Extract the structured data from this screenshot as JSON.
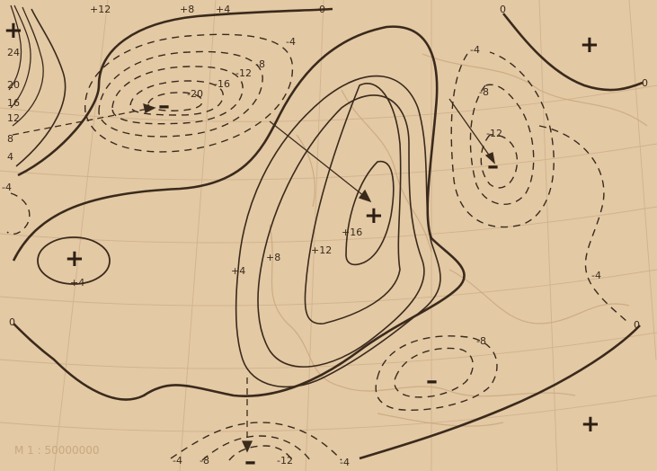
{
  "colors": {
    "paper": "#e3c9a4",
    "ink": "#3a2a1c",
    "coast": "#c9a880",
    "grid": "#cfb08c"
  },
  "scale_text": "M 1 : 50000000",
  "signs": {
    "plus": "+",
    "minus": "–"
  },
  "contour_labels": {
    "n20": "-20",
    "n16": "-16",
    "n12_w": "-12",
    "n8_w": "-8",
    "n4_w": "-4",
    "p12_top": "+12",
    "p8_top": "+8",
    "p4_top": "+4",
    "zero_top": "0",
    "zero_ne": "0",
    "zero_e": "0",
    "zero_sw": "0",
    "zero_s": "0",
    "p16_c": "+16",
    "p12_c": "+12",
    "p8_c": "+8",
    "p4_c": "+4",
    "p4_w": "+4",
    "n4_ne": "-4",
    "n8_ne": "-8",
    "n12_ne": "-12",
    "n4_e": "-4",
    "n8_se": "-8",
    "n4_s1": "-4",
    "n8_s": "-8",
    "n12_s": "-12",
    "n4_s2": "-4",
    "left_24": "24",
    "left_20": "20",
    "left_16": "16",
    "left_12": "12",
    "left_8": "8",
    "left_4": "4",
    "left_m4": "-4"
  }
}
